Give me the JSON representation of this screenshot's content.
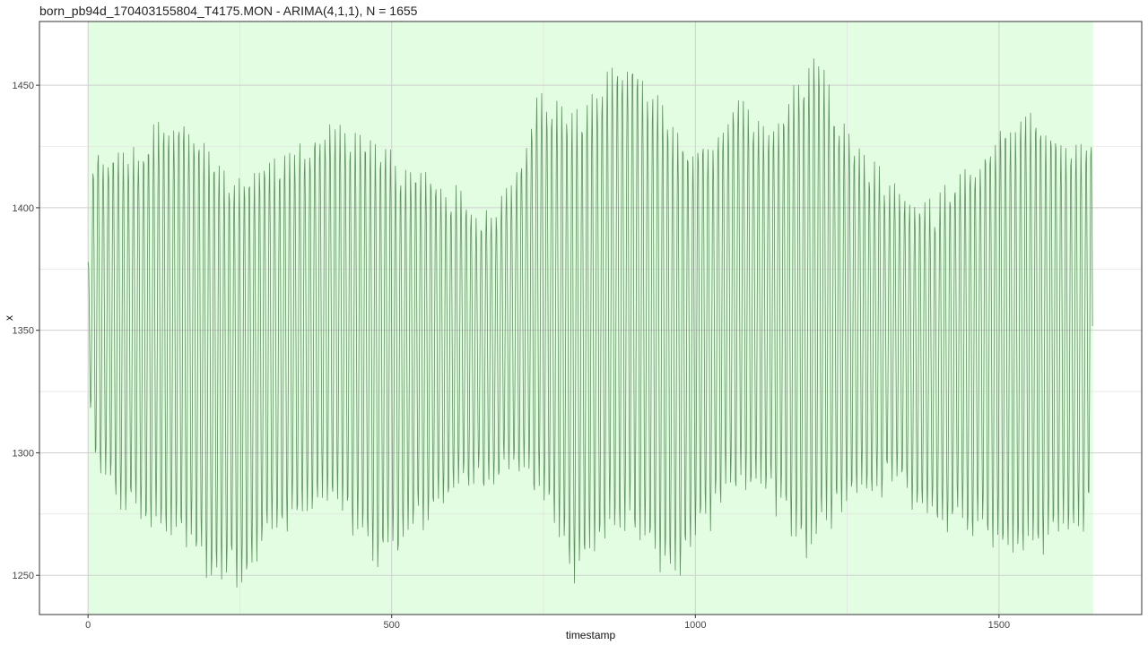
{
  "chart_data": {
    "type": "line",
    "title": "born_pb94d_170403155804_T4175.MON - ARIMA(4,1,1), N = 1655",
    "xlabel": "timestamp",
    "ylabel": "x",
    "xlim": [
      -80,
      1735
    ],
    "ylim": [
      1234,
      1476
    ],
    "x_ticks": [
      0,
      500,
      1000,
      1500
    ],
    "y_ticks": [
      1250,
      1300,
      1350,
      1400,
      1450
    ],
    "x_tick_labels": [
      "0",
      "500",
      "1000",
      "1500"
    ],
    "y_tick_labels": [
      "1250",
      "1300",
      "1350",
      "1400",
      "1450"
    ],
    "grid": true,
    "n_points": 1655,
    "shaded_region": {
      "x_start": 0,
      "x_end": 1655,
      "color": "#e3fde3"
    },
    "line_color": "#5a8a5a",
    "cycle_period": 8.3,
    "upper_envelope": [
      [
        0,
        1376
      ],
      [
        10,
        1423
      ],
      [
        60,
        1419
      ],
      [
        140,
        1436
      ],
      [
        180,
        1428
      ],
      [
        230,
        1411
      ],
      [
        300,
        1418
      ],
      [
        400,
        1432
      ],
      [
        460,
        1431
      ],
      [
        520,
        1414
      ],
      [
        570,
        1412
      ],
      [
        640,
        1396
      ],
      [
        700,
        1408
      ],
      [
        740,
        1447
      ],
      [
        800,
        1436
      ],
      [
        860,
        1452
      ],
      [
        890,
        1462
      ],
      [
        930,
        1446
      ],
      [
        980,
        1426
      ],
      [
        1030,
        1428
      ],
      [
        1070,
        1442
      ],
      [
        1120,
        1433
      ],
      [
        1180,
        1452
      ],
      [
        1200,
        1464
      ],
      [
        1240,
        1430
      ],
      [
        1300,
        1414
      ],
      [
        1340,
        1400
      ],
      [
        1380,
        1398
      ],
      [
        1420,
        1405
      ],
      [
        1470,
        1422
      ],
      [
        1510,
        1435
      ],
      [
        1560,
        1440
      ],
      [
        1600,
        1429
      ],
      [
        1655,
        1426
      ]
    ],
    "lower_envelope": [
      [
        0,
        1340
      ],
      [
        10,
        1291
      ],
      [
        60,
        1279
      ],
      [
        100,
        1270
      ],
      [
        150,
        1268
      ],
      [
        200,
        1252
      ],
      [
        250,
        1250
      ],
      [
        300,
        1266
      ],
      [
        400,
        1280
      ],
      [
        480,
        1253
      ],
      [
        540,
        1270
      ],
      [
        600,
        1284
      ],
      [
        660,
        1290
      ],
      [
        700,
        1296
      ],
      [
        760,
        1274
      ],
      [
        800,
        1252
      ],
      [
        860,
        1268
      ],
      [
        900,
        1270
      ],
      [
        930,
        1254
      ],
      [
        960,
        1248
      ],
      [
        1000,
        1262
      ],
      [
        1050,
        1283
      ],
      [
        1100,
        1290
      ],
      [
        1150,
        1274
      ],
      [
        1180,
        1259
      ],
      [
        1220,
        1270
      ],
      [
        1280,
        1286
      ],
      [
        1330,
        1287
      ],
      [
        1380,
        1276
      ],
      [
        1440,
        1270
      ],
      [
        1500,
        1265
      ],
      [
        1560,
        1260
      ],
      [
        1600,
        1267
      ],
      [
        1640,
        1272
      ],
      [
        1655,
        1295
      ]
    ],
    "scale": 1
  }
}
